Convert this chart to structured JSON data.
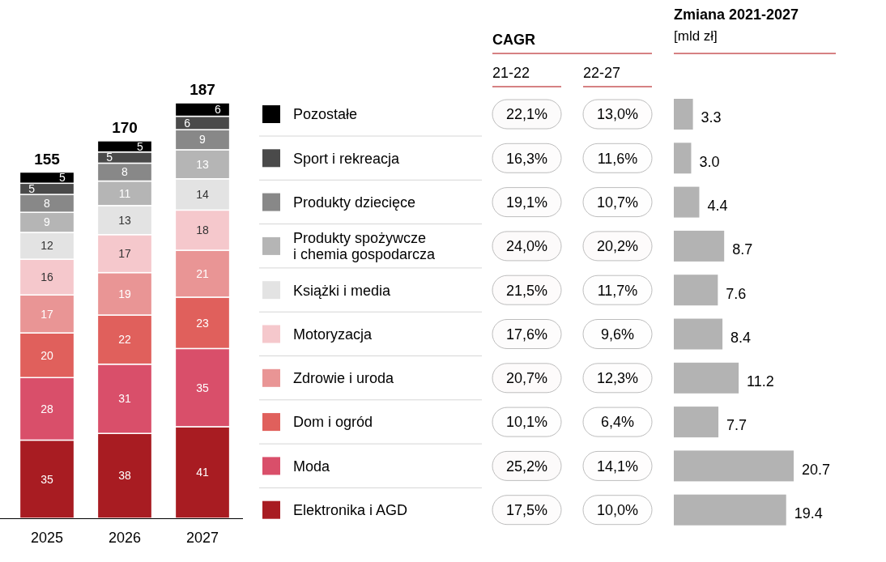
{
  "chart_data": [
    {
      "type": "bar",
      "stacked": true,
      "categories": [
        "2025",
        "2026",
        "2027"
      ],
      "data_labels": true,
      "totals": [
        "155",
        "170",
        "187"
      ],
      "legend": "right",
      "series": [
        {
          "name": "Elektronika i AGD",
          "color": "#a81c22",
          "values": [
            35,
            38,
            41
          ]
        },
        {
          "name": "Moda",
          "color": "#d94f6a",
          "values": [
            28,
            31,
            35
          ]
        },
        {
          "name": "Dom i ogród",
          "color": "#e0605c",
          "values": [
            20,
            22,
            23
          ]
        },
        {
          "name": "Zdrowie i uroda",
          "color": "#e99595",
          "values": [
            17,
            19,
            21
          ]
        },
        {
          "name": "Motoryzacja",
          "color": "#f5c8cc",
          "values": [
            16,
            17,
            18
          ]
        },
        {
          "name": "Książki i media",
          "color": "#e3e3e3",
          "values": [
            12,
            13,
            14
          ]
        },
        {
          "name": "Produkty spożywcze i chemia gospodarcza",
          "color": "#b5b5b5",
          "values": [
            9,
            11,
            13
          ]
        },
        {
          "name": "Produkty dziecięce",
          "color": "#888888",
          "values": [
            8,
            8,
            9
          ]
        },
        {
          "name": "Sport i rekreacja",
          "color": "#4a4a4a",
          "values": [
            5,
            5,
            6
          ]
        },
        {
          "name": "Pozostałe",
          "color": "#000000",
          "values": [
            5,
            5,
            6
          ]
        }
      ]
    },
    {
      "type": "heatmap",
      "title": "CAGR",
      "categories": [
        "21-22",
        "22-27"
      ],
      "y_categories": [
        null,
        null,
        null,
        null,
        null,
        null,
        null,
        null,
        null,
        null
      ],
      "cells": [
        [
          22.1,
          13.0
        ],
        [
          16.3,
          11.6
        ],
        [
          19.1,
          10.7
        ],
        [
          24.0,
          20.2
        ],
        [
          21.5,
          11.7
        ],
        [
          17.6,
          9.6
        ],
        [
          20.7,
          12.3
        ],
        [
          10.1,
          6.4
        ],
        [
          25.2,
          14.1
        ],
        [
          17.5,
          10.0
        ]
      ],
      "cell_labels": [
        [
          "22,1%",
          "13,0%"
        ],
        [
          "16,3%",
          "11,6%"
        ],
        [
          "19,1%",
          "10,7%"
        ],
        [
          "24,0%",
          "20,2%"
        ],
        [
          "21,5%",
          "11,7%"
        ],
        [
          "17,6%",
          "9,6%"
        ],
        [
          "20,7%",
          "12,3%"
        ],
        [
          "10,1%",
          "6,4%"
        ],
        [
          "25,2%",
          "14,1%"
        ],
        [
          "17,5%",
          "10,0%"
        ]
      ]
    },
    {
      "type": "bar",
      "orientation": "horizontal",
      "title": "Zmiana 2021-2027",
      "subtitle": "[mld zł]",
      "categories": [
        null,
        null,
        null,
        null,
        null,
        null,
        null,
        null,
        null,
        null
      ],
      "color": "#b3b3b3",
      "values": [
        3.3,
        3.0,
        4.4,
        8.7,
        7.6,
        8.4,
        11.2,
        7.7,
        20.7,
        19.4
      ],
      "value_labels": [
        "3.3",
        "3.0",
        "4.4",
        "8.7",
        "7.6",
        "8.4",
        "11.2",
        "7.7",
        "20.7",
        "19.4"
      ]
    }
  ]
}
